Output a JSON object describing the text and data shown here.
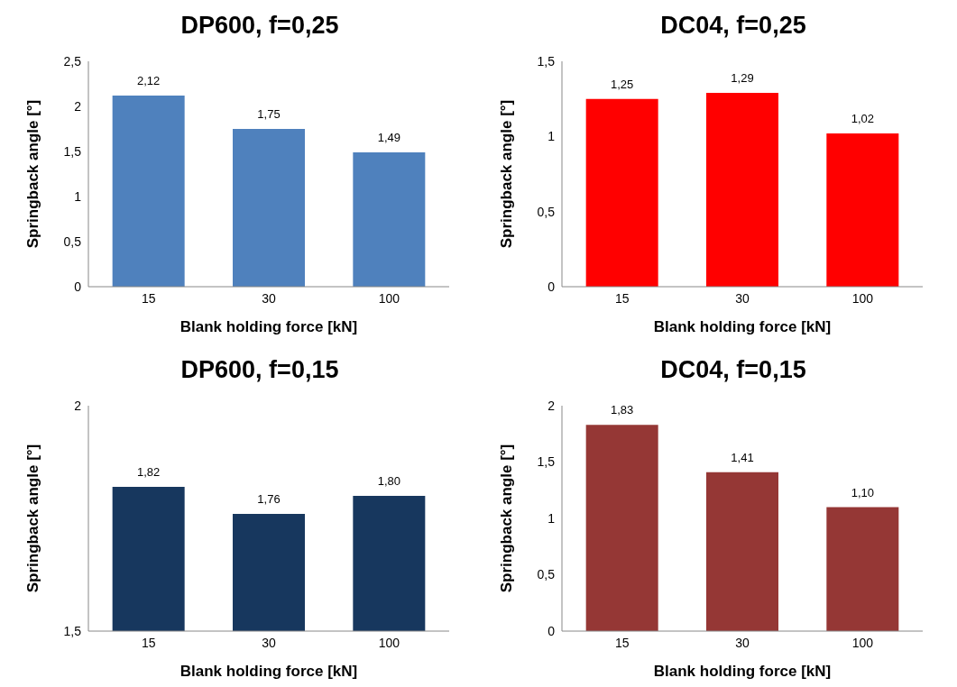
{
  "chart_data": [
    {
      "type": "bar",
      "title": "DP600, f=0,25",
      "xlabel": "Blank holding force [kN]",
      "ylabel": "Springback angle [°]",
      "categories": [
        "15",
        "30",
        "100"
      ],
      "values": [
        2.12,
        1.75,
        1.49
      ],
      "value_labels": [
        "2,12",
        "1,75",
        "1,49"
      ],
      "color": "#4f81bd",
      "ylim": [
        0,
        2.5
      ],
      "yticks": [
        0,
        {
          "value": 0.5,
          "label": "0,5"
        },
        1,
        {
          "value": 1.5,
          "label": "1,5"
        },
        2,
        {
          "value": 2.5,
          "label": "2,5"
        }
      ],
      "grid": false,
      "legend": false
    },
    {
      "type": "bar",
      "title": "DC04, f=0,25",
      "xlabel": "Blank holding force [kN]",
      "ylabel": "Springback angle [°]",
      "categories": [
        "15",
        "30",
        "100"
      ],
      "values": [
        1.25,
        1.29,
        1.02
      ],
      "value_labels": [
        "1,25",
        "1,29",
        "1,02"
      ],
      "color": "#ff0000",
      "ylim": [
        0,
        1.5
      ],
      "yticks": [
        0,
        {
          "value": 0.5,
          "label": "0,5"
        },
        1,
        {
          "value": 1.5,
          "label": "1,5"
        }
      ],
      "grid": false,
      "legend": false
    },
    {
      "type": "bar",
      "title": "DP600, f=0,15",
      "xlabel": "Blank holding force [kN]",
      "ylabel": "Springback angle [°]",
      "categories": [
        "15",
        "30",
        "100"
      ],
      "values": [
        1.82,
        1.76,
        1.8
      ],
      "value_labels": [
        "1,82",
        "1,76",
        "1,80"
      ],
      "color": "#17375e",
      "ylim": [
        1.5,
        2
      ],
      "yticks": [
        {
          "value": 1.5,
          "label": "1,5"
        },
        2
      ],
      "grid": false,
      "legend": false
    },
    {
      "type": "bar",
      "title": "DC04, f=0,15",
      "xlabel": "Blank holding force [kN]",
      "ylabel": "Springback angle [°]",
      "categories": [
        "15",
        "30",
        "100"
      ],
      "values": [
        1.83,
        1.41,
        1.1
      ],
      "value_labels": [
        "1,83",
        "1,41",
        "1,10"
      ],
      "color": "#953735",
      "ylim": [
        0,
        2
      ],
      "yticks": [
        0,
        {
          "value": 0.5,
          "label": "0,5"
        },
        1,
        {
          "value": 1.5,
          "label": "1,5"
        },
        2
      ],
      "grid": false,
      "legend": false
    }
  ]
}
